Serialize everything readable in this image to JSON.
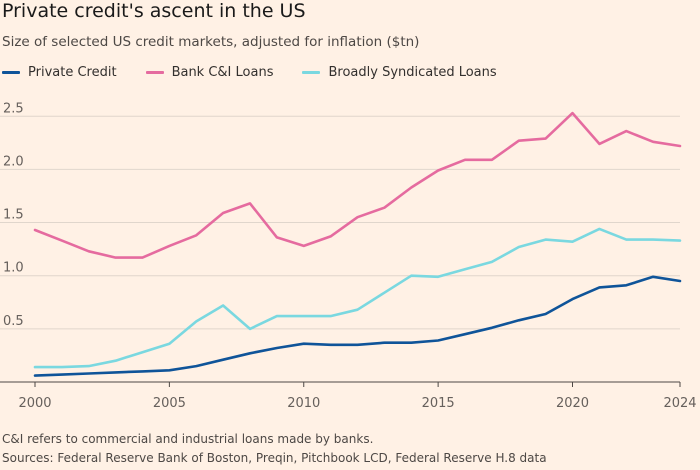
{
  "header": {
    "title": "Private credit's ascent in the US",
    "subtitle": "Size of selected US credit markets, adjusted for inflation ($tn)"
  },
  "footer": {
    "note": "C&I refers to commercial and industrial loans made by banks.",
    "sources": "Sources: Federal Reserve Bank of Boston, Preqin, Pitchbook LCD, Federal Reserve H.8 data"
  },
  "colors": {
    "background": "#fff1e5",
    "private_credit": "#0f5499",
    "bank_ci": "#e56b9f",
    "bsl": "#7ad8e0",
    "grid": "#e0d6cc",
    "axis": "#66605c"
  },
  "chart_data": {
    "type": "line",
    "title": "Private credit's ascent in the US",
    "ylabel": "",
    "xlabel": "",
    "xlim": [
      2000,
      2024
    ],
    "ylim": [
      0,
      2.7
    ],
    "yticks": [
      "0.5",
      "1.0",
      "1.5",
      "2.0",
      "2.5"
    ],
    "xticks": [
      "2000",
      "2005",
      "2010",
      "2015",
      "2020",
      "2024"
    ],
    "legend_position": "top-left",
    "grid": "horizontal",
    "x": [
      2000,
      2001,
      2002,
      2003,
      2004,
      2005,
      2006,
      2007,
      2008,
      2009,
      2010,
      2011,
      2012,
      2013,
      2014,
      2015,
      2016,
      2017,
      2018,
      2019,
      2020,
      2021,
      2022,
      2023,
      2024
    ],
    "series": [
      {
        "name": "Private Credit",
        "color": "#0f5499",
        "values": [
          0.06,
          0.07,
          0.08,
          0.09,
          0.1,
          0.11,
          0.15,
          0.21,
          0.27,
          0.32,
          0.36,
          0.35,
          0.35,
          0.37,
          0.37,
          0.39,
          0.45,
          0.51,
          0.58,
          0.64,
          0.78,
          0.89,
          0.91,
          0.99,
          0.95
        ]
      },
      {
        "name": "Bank C&I Loans",
        "color": "#e56b9f",
        "values": [
          1.43,
          1.33,
          1.23,
          1.17,
          1.17,
          1.28,
          1.38,
          1.59,
          1.68,
          1.36,
          1.28,
          1.37,
          1.55,
          1.64,
          1.83,
          1.99,
          2.09,
          2.09,
          2.27,
          2.29,
          2.53,
          2.24,
          2.36,
          2.26,
          2.22
        ]
      },
      {
        "name": "Broadly Syndicated Loans",
        "color": "#7ad8e0",
        "values": [
          0.14,
          0.14,
          0.15,
          0.2,
          0.28,
          0.36,
          0.57,
          0.72,
          0.5,
          0.62,
          0.62,
          0.62,
          0.68,
          0.84,
          1.0,
          0.99,
          1.06,
          1.13,
          1.27,
          1.34,
          1.32,
          1.44,
          1.34,
          1.34,
          1.33
        ]
      }
    ]
  }
}
